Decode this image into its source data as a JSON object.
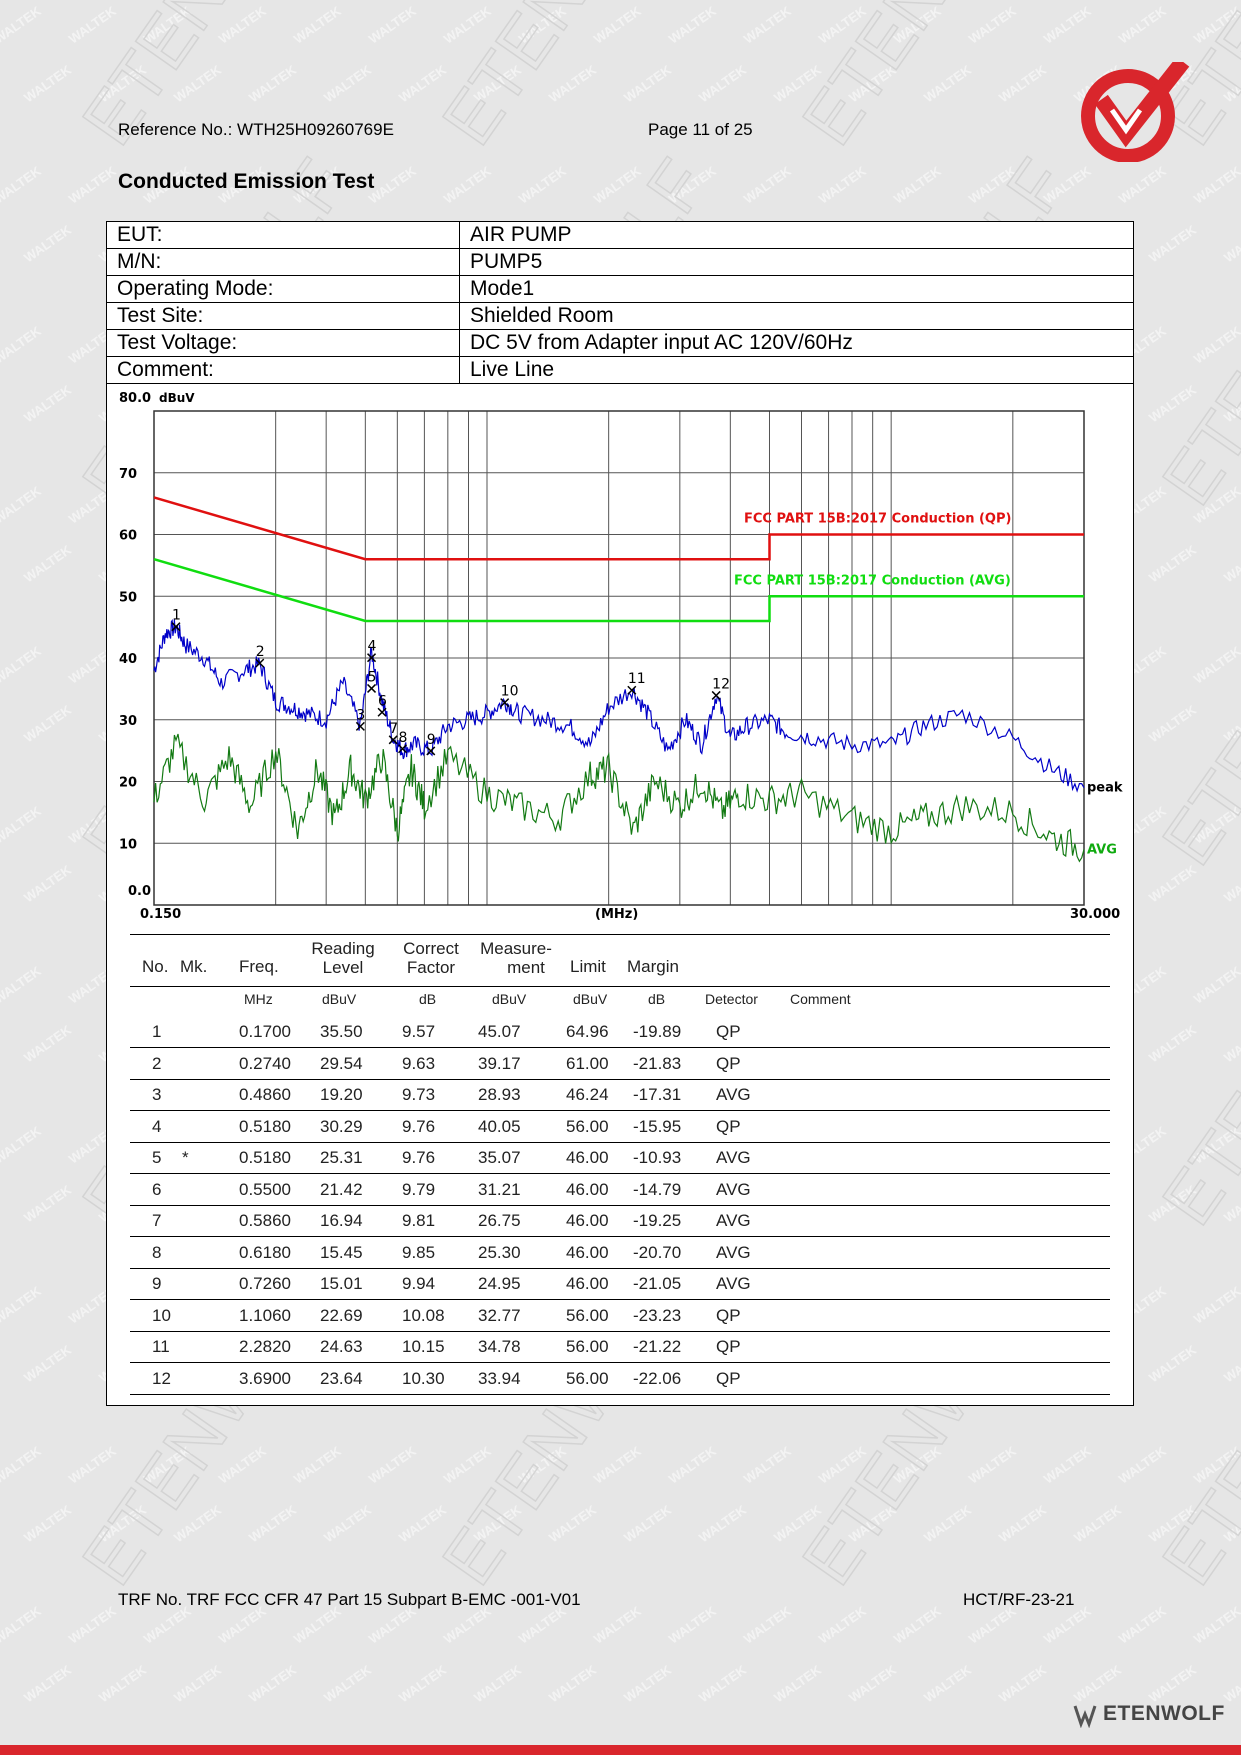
{
  "header": {
    "reference": "Reference No.: WTH25H09260769E",
    "page": "Page 11 of 25"
  },
  "section_title": "Conducted Emission Test",
  "info_rows": [
    {
      "key": "EUT:",
      "value": "AIR PUMP"
    },
    {
      "key": "M/N:",
      "value": "PUMP5"
    },
    {
      "key": "Operating Mode:",
      "value": "Mode1"
    },
    {
      "key": "Test Site:",
      "value": "Shielded Room"
    },
    {
      "key": "Test Voltage:",
      "value": "DC 5V from Adapter input AC 120V/60Hz"
    },
    {
      "key": "Comment:",
      "value": "Live Line"
    }
  ],
  "chart_data": {
    "type": "line",
    "x_scale": "log",
    "xlim": [
      0.15,
      30
    ],
    "ylim": [
      0,
      80
    ],
    "ylabel": "dBuV",
    "xlabel": "(MHz)",
    "x_tick_labels": [
      "0.150",
      "30.000"
    ],
    "y_tick_labels": [
      "80.0",
      "70",
      "60",
      "50",
      "40",
      "30",
      "20",
      "10",
      "0.0"
    ],
    "grid": true,
    "limit_lines": [
      {
        "name": "FCC PART 15B:2017 Conduction (QP)",
        "color": "#e01010",
        "points": [
          [
            0.15,
            66
          ],
          [
            0.5,
            56
          ],
          [
            5,
            56
          ],
          [
            5,
            60
          ],
          [
            30,
            60
          ]
        ]
      },
      {
        "name": "FCC PART 15B:2017 Conduction (AVG)",
        "color": "#10dd10",
        "points": [
          [
            0.15,
            56
          ],
          [
            0.5,
            46
          ],
          [
            5,
            46
          ],
          [
            5,
            50
          ],
          [
            30,
            50
          ]
        ]
      }
    ],
    "series": [
      {
        "name": "peak",
        "color": "#0000c8",
        "x": [
          0.15,
          0.16,
          0.17,
          0.18,
          0.2,
          0.22,
          0.25,
          0.274,
          0.3,
          0.33,
          0.36,
          0.4,
          0.44,
          0.486,
          0.518,
          0.55,
          0.586,
          0.618,
          0.66,
          0.726,
          0.8,
          0.9,
          1.0,
          1.106,
          1.2,
          1.4,
          1.6,
          1.8,
          2.0,
          2.282,
          2.5,
          2.8,
          3.1,
          3.4,
          3.69,
          4.0,
          4.4,
          5.0,
          5.5,
          6.5,
          8.0,
          10.0,
          12.0,
          15.0,
          20.0,
          25.0,
          30.0
        ],
        "y": [
          38,
          44,
          45,
          42,
          40,
          36,
          38,
          39,
          33,
          32,
          31,
          30,
          36,
          29,
          41,
          33,
          27,
          25,
          26,
          25,
          29,
          30,
          31,
          33,
          31,
          30,
          29,
          26,
          32,
          35,
          31,
          25,
          30,
          26,
          34,
          27,
          29,
          30,
          28,
          27,
          26,
          26,
          29,
          31,
          27,
          22,
          19
        ]
      },
      {
        "name": "AVG",
        "color": "#137a13",
        "x": [
          0.15,
          0.17,
          0.2,
          0.23,
          0.26,
          0.3,
          0.34,
          0.38,
          0.42,
          0.46,
          0.5,
          0.55,
          0.6,
          0.65,
          0.7,
          0.8,
          1.0,
          1.2,
          1.5,
          1.8,
          2.0,
          2.3,
          2.6,
          3.0,
          3.4,
          3.8,
          4.2,
          5.0,
          6.0,
          8.0,
          10.0,
          12.0,
          15.0,
          20.0,
          25.0,
          30.0
        ],
        "y": [
          17,
          26,
          17,
          24,
          16,
          25,
          12,
          22,
          14,
          22,
          17,
          24,
          12,
          22,
          16,
          24,
          18,
          16,
          14,
          21,
          22,
          12,
          20,
          16,
          20,
          15,
          18,
          17,
          18,
          14,
          12,
          14,
          16,
          15,
          11,
          9
        ]
      }
    ],
    "series_labels": [
      "peak",
      "AVG"
    ],
    "markers": [
      {
        "label": "1",
        "x": 0.17,
        "y": 45.07
      },
      {
        "label": "2",
        "x": 0.274,
        "y": 39.17
      },
      {
        "label": "3",
        "x": 0.486,
        "y": 28.93
      },
      {
        "label": "4",
        "x": 0.518,
        "y": 40.05
      },
      {
        "label": "5",
        "x": 0.518,
        "y": 35.07
      },
      {
        "label": "6",
        "x": 0.55,
        "y": 31.21
      },
      {
        "label": "7",
        "x": 0.586,
        "y": 26.75
      },
      {
        "label": "8",
        "x": 0.618,
        "y": 25.3
      },
      {
        "label": "9",
        "x": 0.726,
        "y": 24.95
      },
      {
        "label": "10",
        "x": 1.106,
        "y": 32.77
      },
      {
        "label": "11",
        "x": 2.282,
        "y": 34.78
      },
      {
        "label": "12",
        "x": 3.69,
        "y": 33.94
      }
    ]
  },
  "table": {
    "headers": {
      "no": "No.",
      "mk": "Mk.",
      "freq": "Freq.",
      "reading_1": "Reading",
      "reading_2": "Level",
      "correct_1": "Correct",
      "correct_2": "Factor",
      "measure_1": "Measure-",
      "measure_2": "ment",
      "limit": "Limit",
      "margin": "Margin"
    },
    "units": {
      "freq": "MHz",
      "reading": "dBuV",
      "correct": "dB",
      "measure": "dBuV",
      "limit": "dBuV",
      "margin": "dB",
      "detector": "Detector",
      "comment": "Comment"
    },
    "rows": [
      {
        "no": "1",
        "mk": "",
        "freq": "0.1700",
        "reading": "35.50",
        "correct": "9.57",
        "measure": "45.07",
        "limit": "64.96",
        "margin": "-19.89",
        "detector": "QP"
      },
      {
        "no": "2",
        "mk": "",
        "freq": "0.2740",
        "reading": "29.54",
        "correct": "9.63",
        "measure": "39.17",
        "limit": "61.00",
        "margin": "-21.83",
        "detector": "QP"
      },
      {
        "no": "3",
        "mk": "",
        "freq": "0.4860",
        "reading": "19.20",
        "correct": "9.73",
        "measure": "28.93",
        "limit": "46.24",
        "margin": "-17.31",
        "detector": "AVG"
      },
      {
        "no": "4",
        "mk": "",
        "freq": "0.5180",
        "reading": "30.29",
        "correct": "9.76",
        "measure": "40.05",
        "limit": "56.00",
        "margin": "-15.95",
        "detector": "QP"
      },
      {
        "no": "5",
        "mk": "*",
        "freq": "0.5180",
        "reading": "25.31",
        "correct": "9.76",
        "measure": "35.07",
        "limit": "46.00",
        "margin": "-10.93",
        "detector": "AVG"
      },
      {
        "no": "6",
        "mk": "",
        "freq": "0.5500",
        "reading": "21.42",
        "correct": "9.79",
        "measure": "31.21",
        "limit": "46.00",
        "margin": "-14.79",
        "detector": "AVG"
      },
      {
        "no": "7",
        "mk": "",
        "freq": "0.5860",
        "reading": "16.94",
        "correct": "9.81",
        "measure": "26.75",
        "limit": "46.00",
        "margin": "-19.25",
        "detector": "AVG"
      },
      {
        "no": "8",
        "mk": "",
        "freq": "0.6180",
        "reading": "15.45",
        "correct": "9.85",
        "measure": "25.30",
        "limit": "46.00",
        "margin": "-20.70",
        "detector": "AVG"
      },
      {
        "no": "9",
        "mk": "",
        "freq": "0.7260",
        "reading": "15.01",
        "correct": "9.94",
        "measure": "24.95",
        "limit": "46.00",
        "margin": "-21.05",
        "detector": "AVG"
      },
      {
        "no": "10",
        "mk": "",
        "freq": "1.1060",
        "reading": "22.69",
        "correct": "10.08",
        "measure": "32.77",
        "limit": "56.00",
        "margin": "-23.23",
        "detector": "QP"
      },
      {
        "no": "11",
        "mk": "",
        "freq": "2.2820",
        "reading": "24.63",
        "correct": "10.15",
        "measure": "34.78",
        "limit": "56.00",
        "margin": "-21.22",
        "detector": "QP"
      },
      {
        "no": "12",
        "mk": "",
        "freq": "3.6900",
        "reading": "23.64",
        "correct": "10.30",
        "measure": "33.94",
        "limit": "56.00",
        "margin": "-22.06",
        "detector": "QP"
      }
    ]
  },
  "footer": {
    "trf": "TRF No. TRF FCC CFR 47 Part 15 Subpart B-EMC -001-V01",
    "code": "HCT/RF-23-21",
    "brand": "ETENWOLF"
  },
  "watermark": {
    "text_1": "WALTEK",
    "text_2": "ETENWOLF"
  },
  "colors": {
    "accent_red": "#d9262c",
    "qp_limit": "#e01010",
    "avg_limit": "#10dd10",
    "peak_trace": "#0000c8",
    "avg_trace": "#137a13"
  }
}
